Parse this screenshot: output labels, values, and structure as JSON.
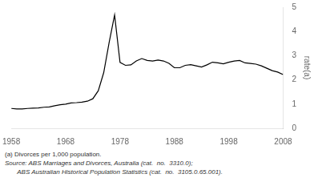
{
  "chart_data": {
    "type": "line",
    "y_label": "rate(a)",
    "annotations": [
      "(a) Divorces per 1,000 population.",
      "Source: ABS Marriages and Divorces, Australia (cat.  no.  3310.0);",
      "       ABS Australian Historical Population Statistics (cat.  no.  3105.0.65.001)."
    ],
    "x": [
      1958,
      1959,
      1960,
      1961,
      1962,
      1963,
      1964,
      1965,
      1966,
      1967,
      1968,
      1969,
      1970,
      1971,
      1972,
      1973,
      1974,
      1975,
      1976,
      1977,
      1978,
      1979,
      1980,
      1981,
      1982,
      1983,
      1984,
      1985,
      1986,
      1987,
      1988,
      1989,
      1990,
      1991,
      1992,
      1993,
      1994,
      1995,
      1996,
      1997,
      1998,
      1999,
      2000,
      2001,
      2002,
      2003,
      2004,
      2005,
      2006,
      2007,
      2008
    ],
    "values": [
      0.82,
      0.8,
      0.8,
      0.82,
      0.83,
      0.84,
      0.87,
      0.88,
      0.93,
      0.97,
      1.0,
      1.05,
      1.06,
      1.08,
      1.12,
      1.22,
      1.55,
      2.3,
      3.55,
      4.68,
      2.72,
      2.6,
      2.62,
      2.78,
      2.88,
      2.8,
      2.78,
      2.82,
      2.78,
      2.68,
      2.5,
      2.5,
      2.6,
      2.63,
      2.58,
      2.53,
      2.62,
      2.73,
      2.7,
      2.66,
      2.73,
      2.78,
      2.8,
      2.7,
      2.68,
      2.65,
      2.58,
      2.48,
      2.38,
      2.32,
      2.22
    ],
    "color": "#000000",
    "xlim": [
      1958,
      2008
    ],
    "xticks": [
      1958,
      1968,
      1978,
      1988,
      1998,
      2008
    ],
    "ylim": [
      0,
      5
    ],
    "yticks": [
      0,
      1,
      2,
      3,
      4,
      5
    ],
    "grid": false
  }
}
